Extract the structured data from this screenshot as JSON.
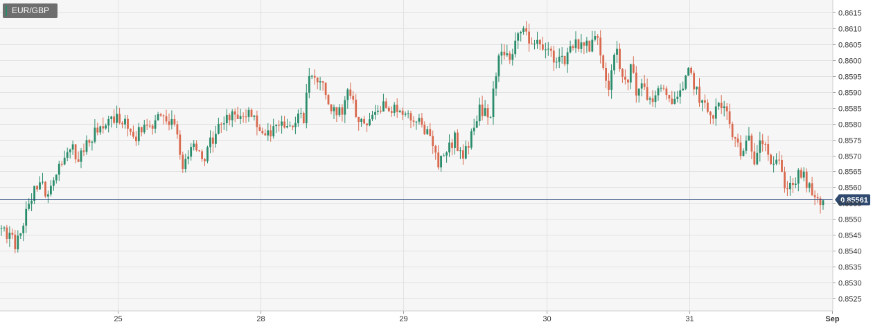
{
  "symbol": "EUR/GBP",
  "chart_data": {
    "type": "candlestick",
    "symbol": "EUR/GBP",
    "y_ticks": [
      "0.8615",
      "0.8610",
      "0.8605",
      "0.8600",
      "0.8595",
      "0.8590",
      "0.8585",
      "0.8580",
      "0.8575",
      "0.8570",
      "0.8565",
      "0.8560",
      "0.8555",
      "0.8550",
      "0.8545",
      "0.8540",
      "0.8535",
      "0.8530",
      "0.8525"
    ],
    "ylim": [
      0.8521,
      0.8619
    ],
    "x_ticks": [
      "25",
      "28",
      "29",
      "30",
      "31",
      "Sep"
    ],
    "current_price": "0.85561",
    "current_price_value": 0.85561,
    "grid": true,
    "colors": {
      "up": "#2a8c6a",
      "down": "#d9694e",
      "current_line": "#1e3a78",
      "grid": "#e1e1e1",
      "plot_bg": "#f6f6f6",
      "badge": "#2f4a6e"
    },
    "closes": [
      [
        0.0,
        0.8547
      ],
      [
        0.5,
        0.8542
      ],
      [
        1.0,
        0.8556
      ],
      [
        1.3,
        0.8561
      ],
      [
        1.6,
        0.8558
      ],
      [
        2.0,
        0.8567
      ],
      [
        2.4,
        0.8572
      ],
      [
        2.7,
        0.857
      ],
      [
        3.0,
        0.8575
      ],
      [
        3.3,
        0.8577
      ],
      [
        3.7,
        0.8579
      ],
      [
        4.0,
        0.8582
      ],
      [
        4.3,
        0.858
      ],
      [
        4.6,
        0.8575
      ],
      [
        5.0,
        0.8579
      ],
      [
        5.4,
        0.8581
      ],
      [
        5.7,
        0.8583
      ],
      [
        6.1,
        0.8578
      ],
      [
        6.4,
        0.8566
      ],
      [
        6.8,
        0.8574
      ],
      [
        7.1,
        0.8567
      ],
      [
        7.3,
        0.8573
      ],
      [
        7.6,
        0.858
      ],
      [
        7.9,
        0.8583
      ],
      [
        8.2,
        0.8582
      ],
      [
        8.6,
        0.8583
      ],
      [
        8.9,
        0.8582
      ],
      [
        9.2,
        0.8576
      ],
      [
        9.6,
        0.8579
      ],
      [
        10.0,
        0.858
      ],
      [
        10.3,
        0.8581
      ],
      [
        10.6,
        0.8582
      ],
      [
        10.8,
        0.8597
      ],
      [
        11.0,
        0.8592
      ],
      [
        11.2,
        0.8596
      ],
      [
        11.4,
        0.859
      ],
      [
        11.6,
        0.8584
      ],
      [
        11.9,
        0.8583
      ],
      [
        12.1,
        0.8592
      ],
      [
        12.3,
        0.8586
      ],
      [
        12.6,
        0.8581
      ],
      [
        12.9,
        0.858
      ],
      [
        13.2,
        0.8585
      ],
      [
        13.5,
        0.8586
      ],
      [
        13.8,
        0.8585
      ],
      [
        14.1,
        0.8583
      ],
      [
        14.4,
        0.8581
      ],
      [
        14.7,
        0.858
      ],
      [
        15.0,
        0.8575
      ],
      [
        15.3,
        0.8568
      ],
      [
        15.6,
        0.8573
      ],
      [
        15.9,
        0.8575
      ],
      [
        16.2,
        0.857
      ],
      [
        16.5,
        0.8577
      ],
      [
        16.8,
        0.8585
      ],
      [
        17.1,
        0.8582
      ],
      [
        17.3,
        0.8592
      ],
      [
        17.5,
        0.8604
      ],
      [
        17.8,
        0.86
      ],
      [
        18.0,
        0.8607
      ],
      [
        18.2,
        0.8609
      ],
      [
        18.5,
        0.8606
      ],
      [
        18.8,
        0.8605
      ],
      [
        19.1,
        0.8603
      ],
      [
        19.4,
        0.8601
      ],
      [
        19.7,
        0.86
      ],
      [
        20.0,
        0.8605
      ],
      [
        20.3,
        0.8606
      ],
      [
        20.6,
        0.8604
      ],
      [
        20.9,
        0.8608
      ],
      [
        21.1,
        0.8598
      ],
      [
        21.3,
        0.8592
      ],
      [
        21.5,
        0.8605
      ],
      [
        21.7,
        0.8596
      ],
      [
        21.9,
        0.8591
      ],
      [
        22.1,
        0.86
      ],
      [
        22.3,
        0.8588
      ],
      [
        22.5,
        0.8593
      ],
      [
        22.7,
        0.8587
      ],
      [
        23.0,
        0.859
      ],
      [
        23.3,
        0.8589
      ],
      [
        23.6,
        0.8588
      ],
      [
        23.9,
        0.859
      ],
      [
        24.1,
        0.8597
      ],
      [
        24.3,
        0.8592
      ],
      [
        24.6,
        0.8585
      ],
      [
        24.9,
        0.8583
      ],
      [
        25.2,
        0.8586
      ],
      [
        25.4,
        0.8584
      ],
      [
        25.6,
        0.8576
      ],
      [
        25.8,
        0.8574
      ],
      [
        26.0,
        0.857
      ],
      [
        26.2,
        0.8575
      ],
      [
        26.4,
        0.8569
      ],
      [
        26.6,
        0.8577
      ],
      [
        26.8,
        0.8574
      ],
      [
        27.0,
        0.8567
      ],
      [
        27.2,
        0.8569
      ],
      [
        27.4,
        0.8562
      ],
      [
        27.6,
        0.856
      ],
      [
        27.8,
        0.8562
      ],
      [
        28.0,
        0.8564
      ],
      [
        28.2,
        0.8562
      ],
      [
        28.4,
        0.8557
      ],
      [
        28.6,
        0.8555
      ],
      [
        28.8,
        0.8556
      ]
    ]
  }
}
